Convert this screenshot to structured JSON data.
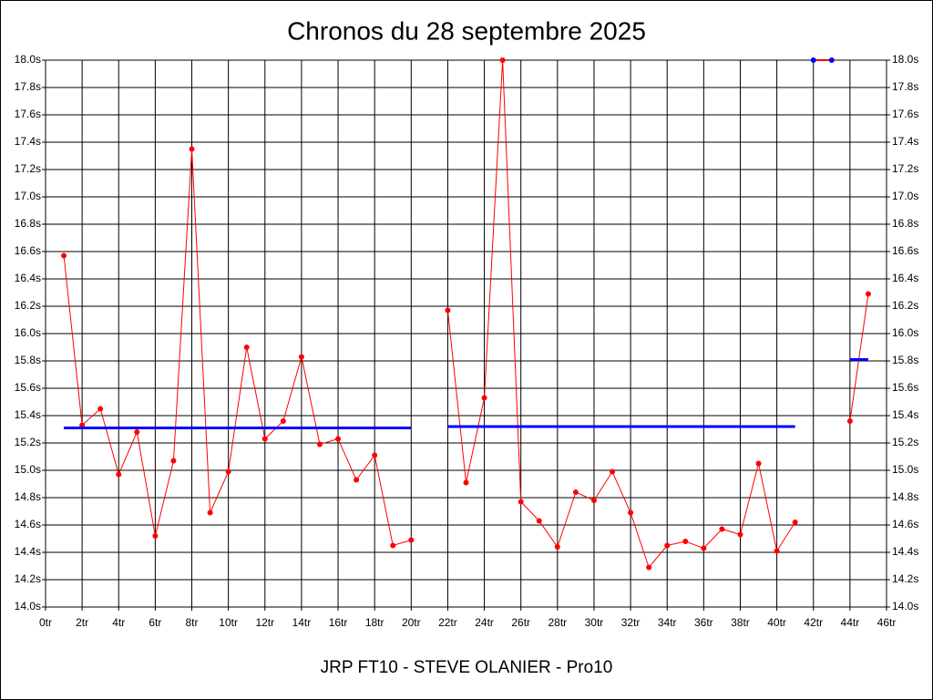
{
  "chart_data": {
    "type": "line",
    "title": "Chronos du 28 septembre 2025",
    "x_label": "JRP FT10 - STEVE OLANIER - Pro10",
    "xlim": [
      0,
      46
    ],
    "ylim": [
      14.0,
      18.0
    ],
    "grid": true,
    "xticks": [
      {
        "value": 0,
        "label": "0tr"
      },
      {
        "value": 2,
        "label": "2tr"
      },
      {
        "value": 4,
        "label": "4tr"
      },
      {
        "value": 6,
        "label": "6tr"
      },
      {
        "value": 8,
        "label": "8tr"
      },
      {
        "value": 10,
        "label": "10tr"
      },
      {
        "value": 12,
        "label": "12tr"
      },
      {
        "value": 14,
        "label": "14tr"
      },
      {
        "value": 16,
        "label": "16tr"
      },
      {
        "value": 18,
        "label": "18tr"
      },
      {
        "value": 20,
        "label": "20tr"
      },
      {
        "value": 22,
        "label": "22tr"
      },
      {
        "value": 24,
        "label": "24tr"
      },
      {
        "value": 26,
        "label": "26tr"
      },
      {
        "value": 28,
        "label": "28tr"
      },
      {
        "value": 30,
        "label": "30tr"
      },
      {
        "value": 32,
        "label": "32tr"
      },
      {
        "value": 34,
        "label": "34tr"
      },
      {
        "value": 36,
        "label": "36tr"
      },
      {
        "value": 38,
        "label": "38tr"
      },
      {
        "value": 40,
        "label": "40tr"
      },
      {
        "value": 42,
        "label": "42tr"
      },
      {
        "value": 44,
        "label": "44tr"
      },
      {
        "value": 46,
        "label": "46tr"
      }
    ],
    "yticks": [
      {
        "value": 14.0,
        "label": "14.0s"
      },
      {
        "value": 14.2,
        "label": "14.2s"
      },
      {
        "value": 14.4,
        "label": "14.4s"
      },
      {
        "value": 14.6,
        "label": "14.6s"
      },
      {
        "value": 14.8,
        "label": "14.8s"
      },
      {
        "value": 15.0,
        "label": "15.0s"
      },
      {
        "value": 15.2,
        "label": "15.2s"
      },
      {
        "value": 15.4,
        "label": "15.4s"
      },
      {
        "value": 15.6,
        "label": "15.6s"
      },
      {
        "value": 15.8,
        "label": "15.8s"
      },
      {
        "value": 16.0,
        "label": "16.0s"
      },
      {
        "value": 16.2,
        "label": "16.2s"
      },
      {
        "value": 16.4,
        "label": "16.4s"
      },
      {
        "value": 16.6,
        "label": "16.6s"
      },
      {
        "value": 16.8,
        "label": "16.8s"
      },
      {
        "value": 17.0,
        "label": "17.0s"
      },
      {
        "value": 17.2,
        "label": "17.2s"
      },
      {
        "value": 17.4,
        "label": "17.4s"
      },
      {
        "value": 17.6,
        "label": "17.6s"
      },
      {
        "value": 17.8,
        "label": "17.8s"
      },
      {
        "value": 18.0,
        "label": "18.0s"
      }
    ],
    "series": [
      {
        "color": "#ff0000",
        "marker_color": "#ff0000",
        "markers": true,
        "width": 1,
        "x": [
          1,
          2,
          3,
          4,
          5,
          6,
          7,
          8,
          9,
          10,
          11,
          12,
          13,
          14,
          15,
          16,
          17,
          18,
          19,
          20,
          21,
          22,
          23,
          24,
          25,
          26,
          27,
          28,
          29,
          30,
          31,
          32,
          33,
          34,
          35,
          36,
          37,
          38,
          39,
          40,
          41,
          42,
          43,
          44,
          45
        ],
        "values": [
          16.57,
          15.33,
          15.45,
          14.97,
          15.28,
          14.52,
          15.07,
          17.35,
          14.69,
          14.99,
          15.9,
          15.23,
          15.36,
          15.83,
          15.19,
          15.23,
          14.93,
          15.11,
          14.45,
          14.49,
          null,
          16.17,
          14.91,
          15.53,
          18.0,
          14.77,
          14.63,
          14.44,
          14.84,
          14.78,
          14.99,
          14.69,
          14.29,
          14.45,
          14.48,
          14.43,
          14.57,
          14.53,
          15.05,
          14.41,
          14.62,
          null,
          null,
          15.36,
          16.29
        ]
      },
      {
        "color": "#ff0000",
        "marker_color": "#0000ff",
        "markers": true,
        "width": 2,
        "x": [
          42,
          43
        ],
        "values": [
          18.0,
          18.0
        ]
      },
      {
        "color": "#0000ff",
        "markers": false,
        "width": 3,
        "x": [
          1,
          20
        ],
        "values": [
          15.31,
          15.31
        ]
      },
      {
        "color": "#0000ff",
        "markers": false,
        "width": 3,
        "x": [
          22,
          41
        ],
        "values": [
          15.32,
          15.32
        ]
      },
      {
        "color": "#0000ff",
        "markers": false,
        "width": 3,
        "x": [
          44,
          45
        ],
        "values": [
          15.81,
          15.81
        ]
      }
    ]
  }
}
